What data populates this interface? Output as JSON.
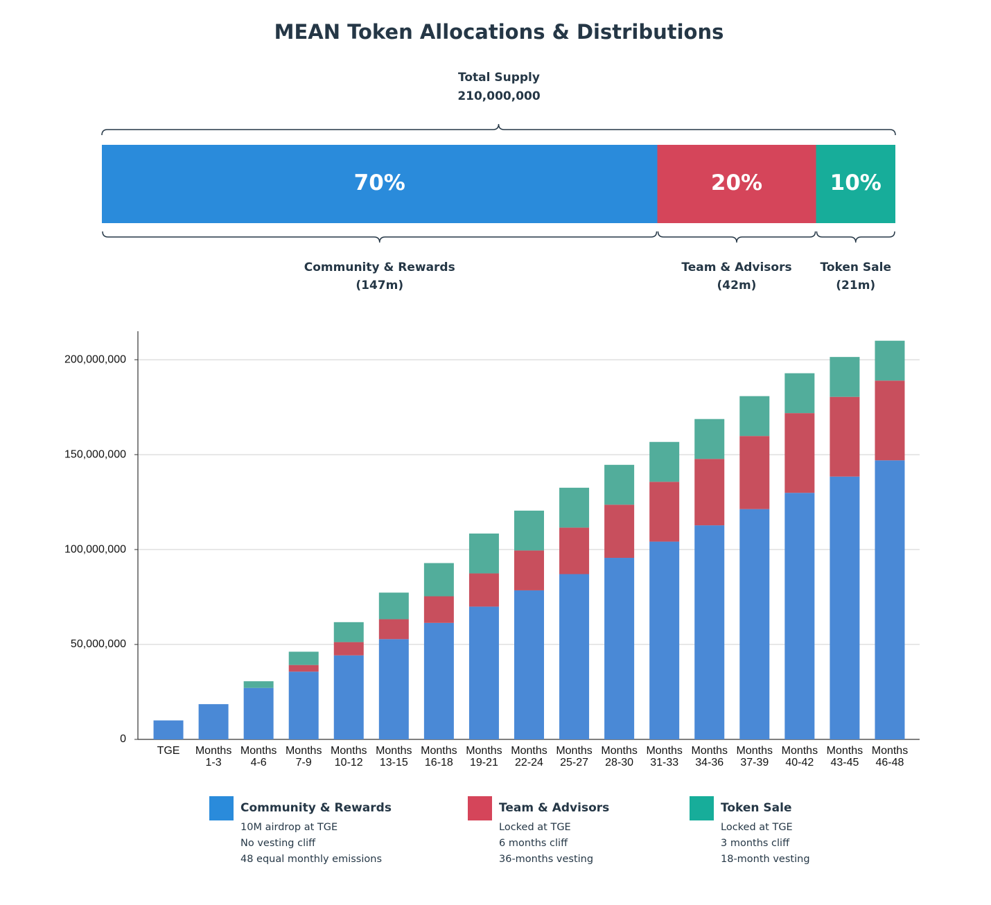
{
  "title": "MEAN Token Allocations & Distributions",
  "chart_data": [
    {
      "type": "share",
      "subtitle": "Total Supply",
      "total": "210,000,000",
      "series": [
        {
          "name": "Community & Rewards",
          "color": "#2a8bdb",
          "values": [
            70
          ],
          "value_labels": [
            "70%"
          ],
          "amount": "(147m)"
        },
        {
          "name": "Team & Advisors",
          "color": "#d5455a",
          "values": [
            20
          ],
          "value_labels": [
            "20%"
          ],
          "amount": "(42m)"
        },
        {
          "name": "Token Sale",
          "color": "#17ad9a",
          "values": [
            10
          ],
          "value_labels": [
            "10%"
          ],
          "amount": "(21m)"
        }
      ]
    },
    {
      "type": "bar",
      "stacked": true,
      "categories": [
        "TGE",
        "Months 1-3",
        "Months 4-6",
        "Months 7-9",
        "Months 10-12",
        "Months 13-15",
        "Months 16-18",
        "Months 19-21",
        "Months 22-24",
        "Months 25-27",
        "Months 28-30",
        "Months 31-33",
        "Months 34-36",
        "Months 37-39",
        "Months 40-42",
        "Months 43-45",
        "Months 46-48"
      ],
      "series": [
        {
          "name": "Community & Rewards",
          "color": "#4a89d6",
          "description": [
            "10M airdrop at TGE",
            "No vesting cliff",
            "48 equal monthly emissions"
          ],
          "values": [
            10000000,
            18562500,
            27125000,
            35687500,
            44250000,
            52812500,
            61375000,
            69937500,
            78500000,
            87062500,
            95625000,
            104187500,
            112750000,
            121312500,
            129875000,
            138437500,
            147000000
          ]
        },
        {
          "name": "Team & Advisors",
          "color": "#c84f5d",
          "description": [
            "Locked at TGE",
            "6 months cliff",
            "36-months vesting"
          ],
          "values": [
            0,
            0,
            0,
            3500000,
            7000000,
            10500000,
            14000000,
            17500000,
            21000000,
            24500000,
            28000000,
            31500000,
            35000000,
            38500000,
            42000000,
            42000000,
            42000000
          ]
        },
        {
          "name": "Token Sale",
          "color": "#52ad9b",
          "description": [
            "Locked at TGE",
            "3 months cliff",
            "18-month vesting"
          ],
          "values": [
            0,
            0,
            3500000,
            7000000,
            10500000,
            14000000,
            17500000,
            21000000,
            21000000,
            21000000,
            21000000,
            21000000,
            21000000,
            21000000,
            21000000,
            21000000,
            21000000
          ]
        }
      ],
      "ylim": [
        0,
        215000000
      ],
      "yticks": [
        0,
        {
          "value": 50000000,
          "label": "50,000,000"
        },
        {
          "value": 100000000,
          "label": "100,000,000"
        },
        {
          "value": 150000000,
          "label": "150,000,000"
        },
        {
          "value": 200000000,
          "label": "200,000,000"
        }
      ],
      "grid": true
    }
  ]
}
